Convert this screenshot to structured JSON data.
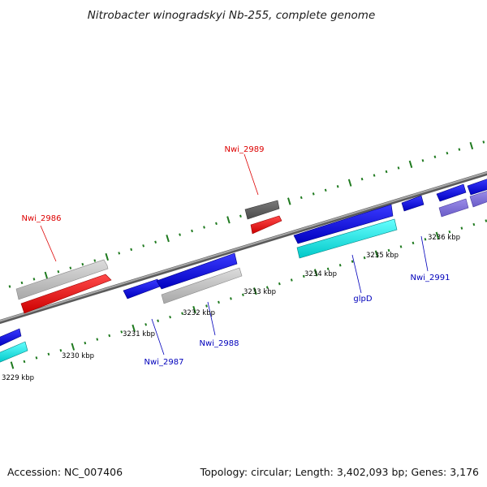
{
  "title": "Nitrobacter winogradskyi Nb-255, complete genome",
  "footer": {
    "accession": "Accession: NC_007406",
    "summary": "Topology: circular; Length: 3,402,093 bp; Genes: 3,176"
  },
  "colors": {
    "backbone": "#8a8a8a",
    "tick_major": "#1f7a1f",
    "tick_minor": "#1f7a1f",
    "forward_label": "#dd0000",
    "reverse_label": "#0000bb"
  },
  "kbp_labels": [
    "3229 kbp",
    "3230 kbp",
    "3231 kbp",
    "3232 kbp",
    "3233 kbp",
    "3234 kbp",
    "3235 kbp",
    "3236 kbp"
  ],
  "gene_labels": [
    "Nwi_2986",
    "Nwi_2989",
    "Nwi_2987",
    "Nwi_2988",
    "glpD",
    "Nwi_2991"
  ]
}
